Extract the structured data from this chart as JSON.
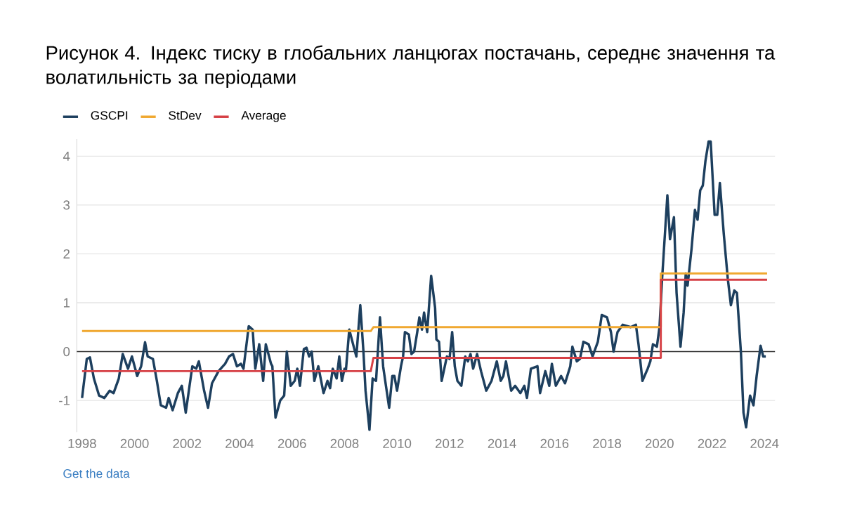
{
  "chart_data": {
    "type": "line",
    "title": "Рисунок 4. Індекс тиску в глобальних ланцюгах постачань, середнє значення та волатильність за періодами",
    "annotations": [
      "Get the data"
    ],
    "legend": "top left",
    "grid": "y",
    "marker": "none",
    "line_style": "solid",
    "xlim": [
      1997.8,
      2024.4
    ],
    "xticks": [
      1998,
      2000,
      2002,
      2004,
      2006,
      2008,
      2010,
      2012,
      2014,
      2016,
      2018,
      2020,
      2022,
      2024
    ],
    "ylim": [
      -1.65,
      4.35
    ],
    "yticks": [
      -1,
      0,
      1,
      2,
      3,
      4
    ],
    "ref_lines": [
      {
        "axis": "y",
        "value": 0,
        "color": "#333333"
      }
    ],
    "series": [
      {
        "name": "GSCPI",
        "color": "#1d3f5e",
        "x": [
          1998.0,
          1998.18,
          1998.3,
          1998.45,
          1998.65,
          1998.85,
          1999.05,
          1999.2,
          1999.4,
          1999.55,
          1999.75,
          1999.9,
          2000.1,
          2000.25,
          2000.4,
          2000.5,
          2000.7,
          2000.85,
          2001.0,
          2001.2,
          2001.3,
          2001.45,
          2001.65,
          2001.8,
          2001.95,
          2002.2,
          2002.35,
          2002.45,
          2002.65,
          2002.8,
          2002.95,
          2003.2,
          2003.45,
          2003.6,
          2003.75,
          2003.9,
          2004.05,
          2004.15,
          2004.35,
          2004.5,
          2004.6,
          2004.75,
          2004.9,
          2005.0,
          2005.2,
          2005.25,
          2005.37,
          2005.55,
          2005.7,
          2005.8,
          2005.95,
          2006.1,
          2006.2,
          2006.3,
          2006.45,
          2006.55,
          2006.65,
          2006.75,
          2006.85,
          2007.0,
          2007.2,
          2007.35,
          2007.45,
          2007.55,
          2007.7,
          2007.8,
          2007.9,
          2008.0,
          2008.05,
          2008.18,
          2008.35,
          2008.45,
          2008.6,
          2008.72,
          2008.8,
          2008.95,
          2009.07,
          2009.2,
          2009.35,
          2009.47,
          2009.55,
          2009.7,
          2009.82,
          2009.9,
          2010.0,
          2010.15,
          2010.23,
          2010.3,
          2010.45,
          2010.55,
          2010.65,
          2010.77,
          2010.85,
          2010.95,
          2011.03,
          2011.15,
          2011.3,
          2011.45,
          2011.5,
          2011.6,
          2011.7,
          2011.9,
          2012.0,
          2012.1,
          2012.2,
          2012.3,
          2012.45,
          2012.6,
          2012.7,
          2012.8,
          2012.9,
          2013.05,
          2013.2,
          2013.4,
          2013.6,
          2013.8,
          2013.95,
          2014.05,
          2014.15,
          2014.35,
          2014.5,
          2014.7,
          2014.85,
          2014.95,
          2015.1,
          2015.35,
          2015.45,
          2015.65,
          2015.8,
          2015.9,
          2016.05,
          2016.25,
          2016.4,
          2016.6,
          2016.68,
          2016.85,
          2016.97,
          2017.1,
          2017.3,
          2017.45,
          2017.65,
          2017.8,
          2018.0,
          2018.15,
          2018.25,
          2018.4,
          2018.6,
          2018.9,
          2019.1,
          2019.2,
          2019.35,
          2019.55,
          2019.65,
          2019.75,
          2019.9,
          2020.0,
          2020.1,
          2020.3,
          2020.4,
          2020.55,
          2020.65,
          2020.8,
          2020.92,
          2021.0,
          2021.07,
          2021.22,
          2021.35,
          2021.45,
          2021.55,
          2021.65,
          2021.75,
          2021.87,
          2021.95,
          2022.1,
          2022.2,
          2022.3,
          2022.45,
          2022.6,
          2022.72,
          2022.85,
          2022.95,
          2023.1,
          2023.2,
          2023.3,
          2023.45,
          2023.58,
          2023.7,
          2023.85,
          2023.95,
          2024.05
        ],
        "values": [
          -0.95,
          -0.15,
          -0.12,
          -0.55,
          -0.9,
          -0.95,
          -0.8,
          -0.85,
          -0.55,
          -0.05,
          -0.35,
          -0.1,
          -0.5,
          -0.3,
          0.19,
          -0.1,
          -0.15,
          -0.6,
          -1.1,
          -1.15,
          -0.95,
          -1.2,
          -0.85,
          -0.7,
          -1.25,
          -0.3,
          -0.35,
          -0.2,
          -0.8,
          -1.15,
          -0.65,
          -0.4,
          -0.25,
          -0.1,
          -0.05,
          -0.3,
          -0.25,
          -0.35,
          0.52,
          0.45,
          -0.35,
          0.15,
          -0.6,
          0.15,
          -0.25,
          -0.3,
          -1.35,
          -1.0,
          -0.9,
          0.0,
          -0.7,
          -0.6,
          -0.35,
          -0.7,
          0.05,
          0.08,
          -0.1,
          0.0,
          -0.6,
          -0.3,
          -0.85,
          -0.6,
          -0.75,
          -0.35,
          -0.55,
          -0.1,
          -0.6,
          -0.35,
          -0.4,
          0.45,
          0.1,
          -0.1,
          0.95,
          0.0,
          -0.8,
          -1.6,
          -0.55,
          -0.6,
          0.7,
          -0.3,
          -0.6,
          -1.15,
          -0.5,
          -0.5,
          -0.8,
          -0.3,
          -0.1,
          0.4,
          0.35,
          -0.05,
          0.0,
          0.4,
          0.7,
          0.45,
          0.8,
          0.4,
          1.55,
          0.9,
          0.25,
          0.2,
          -0.6,
          -0.1,
          -0.15,
          0.4,
          -0.3,
          -0.6,
          -0.7,
          -0.1,
          -0.2,
          -0.05,
          -0.35,
          -0.05,
          -0.4,
          -0.8,
          -0.6,
          -0.2,
          -0.6,
          -0.5,
          -0.2,
          -0.8,
          -0.7,
          -0.85,
          -0.7,
          -0.95,
          -0.35,
          -0.3,
          -0.85,
          -0.4,
          -0.7,
          -0.25,
          -0.7,
          -0.5,
          -0.65,
          -0.3,
          0.1,
          -0.2,
          -0.15,
          0.2,
          0.15,
          -0.1,
          0.2,
          0.75,
          0.7,
          0.4,
          0.0,
          0.4,
          0.55,
          0.5,
          0.55,
          0.15,
          -0.6,
          -0.35,
          -0.2,
          0.15,
          0.1,
          0.5,
          1.5,
          3.2,
          2.3,
          2.75,
          1.2,
          0.1,
          0.8,
          1.6,
          1.35,
          2.1,
          2.9,
          2.7,
          3.3,
          3.4,
          3.9,
          4.3,
          4.3,
          2.8,
          2.8,
          3.45,
          2.4,
          1.5,
          0.95,
          1.25,
          1.2,
          0.0,
          -1.25,
          -1.55,
          -0.9,
          -1.1,
          -0.5,
          0.12,
          -0.1,
          -0.1
        ]
      },
      {
        "name": "StDev",
        "color": "#f0a830",
        "x": [
          1998.0,
          2009.0,
          2009.1,
          2020.05,
          2020.05,
          2024.1
        ],
        "values": [
          0.42,
          0.42,
          0.5,
          0.5,
          1.6,
          1.6
        ]
      },
      {
        "name": "Average",
        "color": "#d64045",
        "x": [
          1998.0,
          2009.0,
          2009.1,
          2020.05,
          2020.05,
          2024.1
        ],
        "values": [
          -0.4,
          -0.4,
          -0.13,
          -0.13,
          1.47,
          1.47
        ]
      }
    ]
  }
}
